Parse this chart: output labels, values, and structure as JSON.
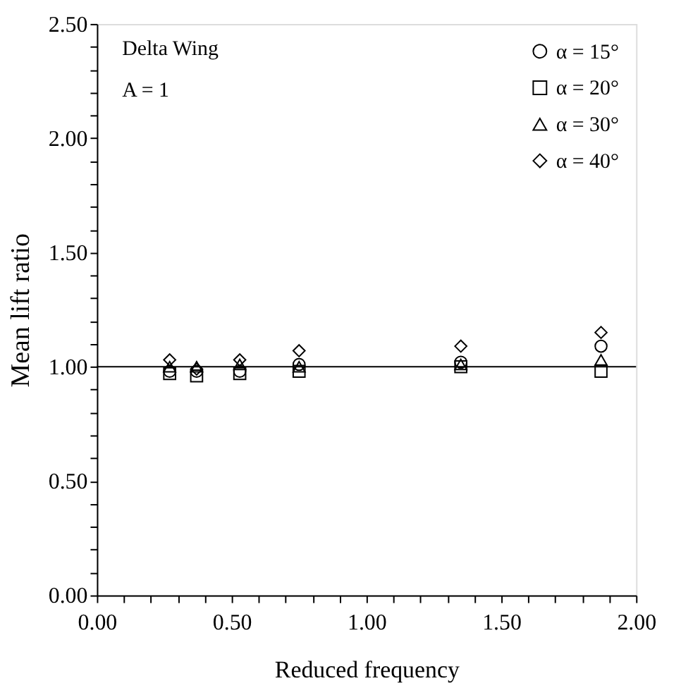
{
  "chart_data": {
    "type": "scatter",
    "xlabel": "Reduced frequency",
    "ylabel": "Mean lift ratio",
    "annotations": [
      "Delta Wing",
      "A = 1"
    ],
    "x": [
      0.27,
      0.37,
      0.53,
      0.75,
      1.35,
      1.87
    ],
    "series": [
      {
        "name": "α = 15°",
        "color": "#000000",
        "marker": "circle",
        "values": [
          0.98,
          0.98,
          0.98,
          1.01,
          1.02,
          1.09
        ]
      },
      {
        "name": "α = 20°",
        "color": "#000000",
        "marker": "square",
        "values": [
          0.97,
          0.96,
          0.97,
          0.98,
          1.0,
          0.98
        ]
      },
      {
        "name": "α = 30°",
        "color": "#000000",
        "marker": "triangle",
        "values": [
          1.0,
          1.0,
          1.01,
          1.0,
          1.01,
          1.03
        ]
      },
      {
        "name": "α = 40°",
        "color": "#000000",
        "marker": "diamond",
        "values": [
          1.03,
          0.99,
          1.03,
          1.07,
          1.09,
          1.15
        ]
      }
    ],
    "xlim": [
      0,
      2
    ],
    "ylim": [
      0,
      2.5
    ],
    "xticks": [
      {
        "value": 0,
        "label": "0.00"
      },
      {
        "value": 0.1,
        "label": null
      },
      {
        "value": 0.2,
        "label": null
      },
      {
        "value": 0.3,
        "label": null
      },
      {
        "value": 0.4,
        "label": null
      },
      {
        "value": 0.5,
        "label": "0.50"
      },
      {
        "value": 0.6,
        "label": null
      },
      {
        "value": 0.7,
        "label": null
      },
      {
        "value": 0.8,
        "label": null
      },
      {
        "value": 0.9,
        "label": null
      },
      {
        "value": 1,
        "label": "1.00"
      },
      {
        "value": 1.1,
        "label": null
      },
      {
        "value": 1.2,
        "label": null
      },
      {
        "value": 1.3,
        "label": null
      },
      {
        "value": 1.4,
        "label": null
      },
      {
        "value": 1.5,
        "label": "1.50"
      },
      {
        "value": 1.6,
        "label": null
      },
      {
        "value": 1.7,
        "label": null
      },
      {
        "value": 1.8,
        "label": null
      },
      {
        "value": 1.9,
        "label": null
      },
      {
        "value": 2,
        "label": "2.00"
      }
    ],
    "yticks": [
      {
        "value": 0,
        "label": "0.00"
      },
      {
        "value": 0.1,
        "label": null
      },
      {
        "value": 0.2,
        "label": null
      },
      {
        "value": 0.3,
        "label": null
      },
      {
        "value": 0.4,
        "label": null
      },
      {
        "value": 0.5,
        "label": "0.50"
      },
      {
        "value": 0.6,
        "label": null
      },
      {
        "value": 0.7,
        "label": null
      },
      {
        "value": 0.8,
        "label": null
      },
      {
        "value": 0.9,
        "label": null
      },
      {
        "value": 1,
        "label": "1.00"
      },
      {
        "value": 1.1,
        "label": null
      },
      {
        "value": 1.2,
        "label": null
      },
      {
        "value": 1.3,
        "label": null
      },
      {
        "value": 1.4,
        "label": null
      },
      {
        "value": 1.5,
        "label": "1.50"
      },
      {
        "value": 1.6,
        "label": null
      },
      {
        "value": 1.7,
        "label": null
      },
      {
        "value": 1.8,
        "label": null
      },
      {
        "value": 1.9,
        "label": null
      },
      {
        "value": 2,
        "label": "2.00"
      },
      {
        "value": 2.1,
        "label": null
      },
      {
        "value": 2.2,
        "label": null
      },
      {
        "value": 2.3,
        "label": null
      },
      {
        "value": 2.4,
        "label": null
      },
      {
        "value": 2.5,
        "label": "2.50"
      }
    ],
    "ref_lines": [
      {
        "axis": "y",
        "value": 1,
        "color": "#000000",
        "line_style": "solid"
      }
    ],
    "grid": false,
    "legend": "top right"
  }
}
